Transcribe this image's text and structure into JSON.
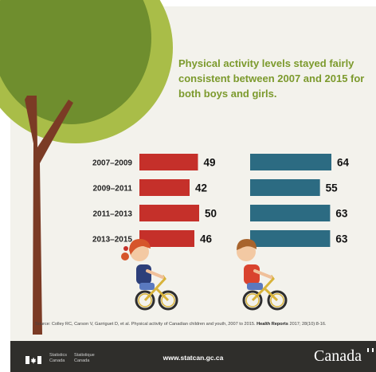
{
  "headline": "Physical activity levels stayed fairly consistent between 2007 and 2015 for both boys and girls.",
  "chart_data": {
    "type": "bar",
    "orientation": "horizontal",
    "categories": [
      "2007–2009",
      "2009–2011",
      "2011–2013",
      "2013–2015"
    ],
    "series": [
      {
        "values": [
          49,
          42,
          50,
          46
        ],
        "color": "#c5302a"
      },
      {
        "values": [
          64,
          55,
          63,
          63
        ],
        "color": "#2c6b82"
      }
    ],
    "grid": false,
    "legend": "none",
    "data_labels": true
  },
  "source": {
    "text": "Source: Colley RC, Carson V, Garriguet D, et al. Physical activity of Canadian children and youth, 2007 to 2015.",
    "journal": "Health Reports",
    "citation": "2017; 28(10):8-16."
  },
  "footer": {
    "agency_en": "Statistics\nCanada",
    "agency_fr": "Statistique\nCanada",
    "url": "www.statcan.gc.ca",
    "wordmark": "Canada"
  },
  "colors": {
    "background": "#f3f2ec",
    "headline": "#7c9a2d",
    "girls_bar": "#c5302a",
    "boys_bar": "#2c6b82",
    "footer": "#2f2e2b",
    "tree_canopy_light": "#a9bd48",
    "tree_canopy_dark": "#6f8e2e",
    "tree_trunk": "#7b3b25"
  },
  "illustrations": [
    "tree",
    "girl-on-bicycle",
    "boy-on-bicycle"
  ]
}
